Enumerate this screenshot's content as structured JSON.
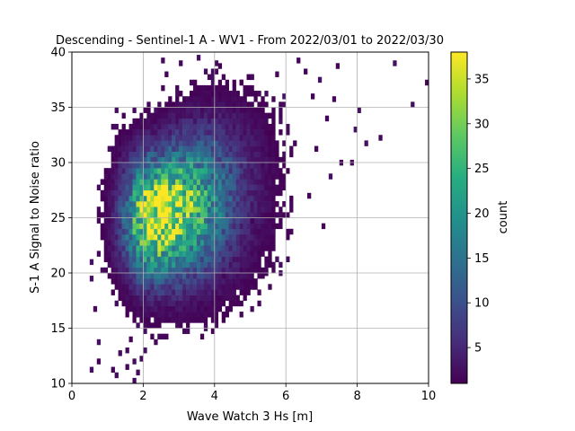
{
  "chart_data": {
    "type": "heatmap",
    "title": "Descending - Sentinel-1 A - WV1 - From 2022/03/01 to 2022/03/30",
    "xlabel": "Wave Watch 3 Hs [m]",
    "ylabel": "S-1 A Signal to Noise ratio",
    "xlim": [
      0,
      10
    ],
    "ylim": [
      10,
      40
    ],
    "x_ticks": [
      "0",
      "2",
      "4",
      "6",
      "8",
      "10"
    ],
    "y_ticks": [
      "10",
      "15",
      "20",
      "25",
      "30",
      "35",
      "40"
    ],
    "grid": true,
    "colormap": "viridis",
    "colorbar": {
      "label": "count",
      "range": [
        1,
        38
      ],
      "ticks": [
        "5",
        "10",
        "15",
        "20",
        "25",
        "30",
        "35"
      ]
    },
    "bin_size": {
      "x": 0.1,
      "y": 0.5
    },
    "density_model": {
      "center": {
        "x": 2.3,
        "y": 25.0
      },
      "peak_count": 38,
      "note": "2D histogram of counts; dense core near Hs≈2.2 m, SNR≈25, spreading toward higher Hs and SNR"
    },
    "outlier_bins": [
      {
        "x": 9.95,
        "y": 37.25
      },
      {
        "x": 9.55,
        "y": 35.25
      },
      {
        "x": 9.05,
        "y": 39.0
      },
      {
        "x": 8.65,
        "y": 32.25
      },
      {
        "x": 8.05,
        "y": 34.75
      },
      {
        "x": 8.25,
        "y": 31.75
      },
      {
        "x": 7.85,
        "y": 30.0
      },
      {
        "x": 7.95,
        "y": 33.0
      },
      {
        "x": 7.55,
        "y": 30.0
      },
      {
        "x": 7.45,
        "y": 38.75
      },
      {
        "x": 7.35,
        "y": 35.75
      },
      {
        "x": 7.15,
        "y": 34.0
      },
      {
        "x": 7.25,
        "y": 28.75
      },
      {
        "x": 6.95,
        "y": 37.5
      },
      {
        "x": 6.75,
        "y": 36.0
      },
      {
        "x": 6.85,
        "y": 31.25
      },
      {
        "x": 6.35,
        "y": 39.25
      },
      {
        "x": 6.55,
        "y": 38.25
      },
      {
        "x": 7.05,
        "y": 24.25
      },
      {
        "x": 6.65,
        "y": 27.0
      },
      {
        "x": 6.15,
        "y": 25.75
      },
      {
        "x": 6.05,
        "y": 21.25
      },
      {
        "x": 5.55,
        "y": 21.25
      },
      {
        "x": 5.85,
        "y": 20.0
      },
      {
        "x": 5.45,
        "y": 20.0
      },
      {
        "x": 5.65,
        "y": 23.75
      },
      {
        "x": 5.05,
        "y": 24.75
      },
      {
        "x": 5.95,
        "y": 36.0
      },
      {
        "x": 5.75,
        "y": 38.0
      },
      {
        "x": 5.05,
        "y": 37.75
      },
      {
        "x": 4.75,
        "y": 37.25
      },
      {
        "x": 4.15,
        "y": 38.75
      },
      {
        "x": 4.05,
        "y": 39.0
      },
      {
        "x": 3.45,
        "y": 37.25
      },
      {
        "x": 3.55,
        "y": 39.5
      },
      {
        "x": 3.05,
        "y": 39.0
      },
      {
        "x": 2.65,
        "y": 38.0
      },
      {
        "x": 2.55,
        "y": 39.25
      },
      {
        "x": 2.55,
        "y": 36.75
      },
      {
        "x": 2.95,
        "y": 36.75
      },
      {
        "x": 3.75,
        "y": 36.0
      },
      {
        "x": 1.25,
        "y": 34.75
      },
      {
        "x": 1.15,
        "y": 33.25
      },
      {
        "x": 4.45,
        "y": 18.75
      },
      {
        "x": 3.75,
        "y": 15.0
      },
      {
        "x": 4.25,
        "y": 19.75
      },
      {
        "x": 0.55,
        "y": 11.25
      },
      {
        "x": 0.75,
        "y": 13.75
      },
      {
        "x": 0.75,
        "y": 12.0
      },
      {
        "x": 1.15,
        "y": 11.25
      },
      {
        "x": 1.25,
        "y": 10.75
      },
      {
        "x": 1.35,
        "y": 12.75
      },
      {
        "x": 1.55,
        "y": 13.0
      },
      {
        "x": 1.55,
        "y": 11.5
      },
      {
        "x": 1.75,
        "y": 12.0
      },
      {
        "x": 1.85,
        "y": 11.0
      },
      {
        "x": 1.95,
        "y": 12.25
      },
      {
        "x": 1.75,
        "y": 10.25
      },
      {
        "x": 1.65,
        "y": 14.0
      },
      {
        "x": 2.05,
        "y": 13.0
      },
      {
        "x": 2.35,
        "y": 13.75
      },
      {
        "x": 2.45,
        "y": 14.25
      },
      {
        "x": 0.65,
        "y": 16.75
      },
      {
        "x": 0.55,
        "y": 19.5
      },
      {
        "x": 0.55,
        "y": 21.0
      }
    ]
  }
}
